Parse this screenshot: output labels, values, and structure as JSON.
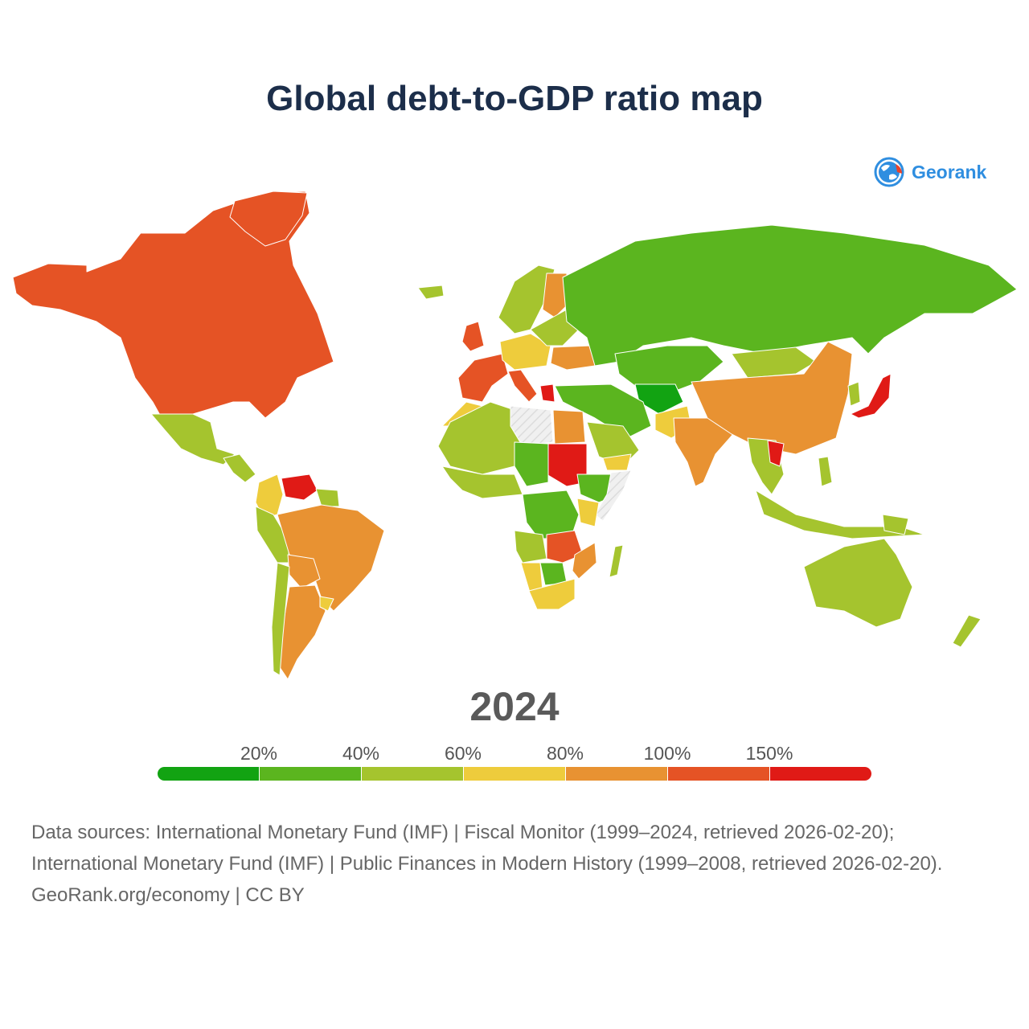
{
  "title": "Global debt-to-GDP ratio map",
  "brand": {
    "name": "Georank",
    "color": "#2f8ee0"
  },
  "year": "2024",
  "legend": {
    "labels": [
      "20%",
      "40%",
      "60%",
      "80%",
      "100%",
      "150%"
    ],
    "bins": [
      {
        "color": "#12a312"
      },
      {
        "color": "#5bb51f"
      },
      {
        "color": "#a5c42e"
      },
      {
        "color": "#eecc3c"
      },
      {
        "color": "#e89232"
      },
      {
        "color": "#e55325"
      },
      {
        "color": "#e01a16"
      }
    ]
  },
  "regions": [
    {
      "id": "north-america-usa-canada",
      "bin": 5
    },
    {
      "id": "greenland",
      "bin": 5
    },
    {
      "id": "mexico",
      "bin": 2
    },
    {
      "id": "central-america",
      "bin": 2
    },
    {
      "id": "colombia",
      "bin": 3
    },
    {
      "id": "venezuela",
      "bin": 6
    },
    {
      "id": "guyana",
      "bin": 2
    },
    {
      "id": "ecuador-peru",
      "bin": 2
    },
    {
      "id": "brazil",
      "bin": 4
    },
    {
      "id": "bolivia",
      "bin": 4
    },
    {
      "id": "argentina",
      "bin": 4
    },
    {
      "id": "chile",
      "bin": 2
    },
    {
      "id": "uruguay",
      "bin": 3
    },
    {
      "id": "iceland",
      "bin": 2
    },
    {
      "id": "scandinavia",
      "bin": 2
    },
    {
      "id": "finland",
      "bin": 4
    },
    {
      "id": "uk",
      "bin": 5
    },
    {
      "id": "france-spain",
      "bin": 5
    },
    {
      "id": "central-europe",
      "bin": 3
    },
    {
      "id": "italy",
      "bin": 5
    },
    {
      "id": "greece",
      "bin": 6
    },
    {
      "id": "eastern-europe",
      "bin": 2
    },
    {
      "id": "ukraine",
      "bin": 4
    },
    {
      "id": "russia",
      "bin": 1
    },
    {
      "id": "kazakhstan-central-asia",
      "bin": 1
    },
    {
      "id": "afghanistan",
      "bin": 0
    },
    {
      "id": "turkey-middle-east",
      "bin": 1
    },
    {
      "id": "arabia",
      "bin": 2
    },
    {
      "id": "yemen",
      "bin": 3
    },
    {
      "id": "pakistan",
      "bin": 3
    },
    {
      "id": "india",
      "bin": 4
    },
    {
      "id": "mongolia",
      "bin": 2
    },
    {
      "id": "china",
      "bin": 4
    },
    {
      "id": "korea",
      "bin": 2
    },
    {
      "id": "japan",
      "bin": 6
    },
    {
      "id": "southeast-asia",
      "bin": 2
    },
    {
      "id": "laos",
      "bin": 6
    },
    {
      "id": "indonesia",
      "bin": 2
    },
    {
      "id": "philippines",
      "bin": 2
    },
    {
      "id": "australia",
      "bin": 2
    },
    {
      "id": "new-zealand",
      "bin": 2
    },
    {
      "id": "papua-new-guinea",
      "bin": 2
    },
    {
      "id": "morocco",
      "bin": 3
    },
    {
      "id": "algeria-sahel",
      "bin": 2
    },
    {
      "id": "west-africa",
      "bin": 2
    },
    {
      "id": "egypt",
      "bin": 4
    },
    {
      "id": "sudan",
      "bin": 6
    },
    {
      "id": "chad-niger",
      "bin": 1
    },
    {
      "id": "ethiopia",
      "bin": 1
    },
    {
      "id": "kenya",
      "bin": 3
    },
    {
      "id": "congo-drc",
      "bin": 1
    },
    {
      "id": "angola",
      "bin": 2
    },
    {
      "id": "zambia-malawi",
      "bin": 5
    },
    {
      "id": "namibia",
      "bin": 3
    },
    {
      "id": "botswana",
      "bin": 1
    },
    {
      "id": "south-africa",
      "bin": 3
    },
    {
      "id": "mozambique",
      "bin": 4
    },
    {
      "id": "madagascar",
      "bin": 2
    },
    {
      "id": "libya",
      "bin": -1
    },
    {
      "id": "somalia",
      "bin": -1
    }
  ],
  "sources": {
    "line1": "Data sources: International Monetary Fund (IMF) | Fiscal Monitor (1999–2024, retrieved 2026-02-20); International Monetary Fund (IMF) | Public Finances in Modern History (1999–2008, retrieved 2026-02-20).",
    "line2": "GeoRank.org/economy | CC BY"
  }
}
